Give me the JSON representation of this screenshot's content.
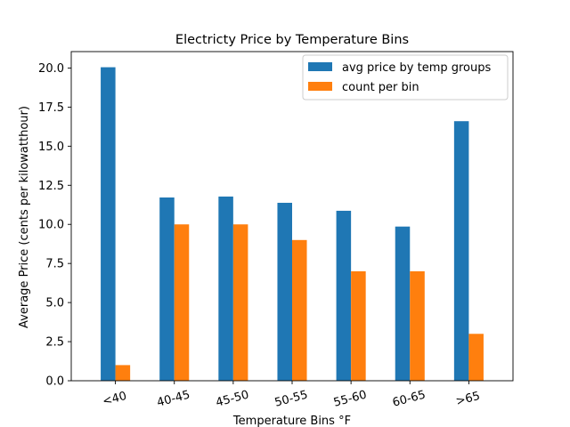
{
  "chart_data": {
    "type": "bar",
    "title": "Electricty Price by Temperature Bins",
    "xlabel": "Temperature Bins °F",
    "ylabel": "Average Price (cents per kilowatthour)",
    "categories": [
      "<40",
      "40-45",
      "45-50",
      "50-55",
      "55-60",
      "60-65",
      ">65"
    ],
    "series": [
      {
        "name": "avg price by temp groups",
        "color": "#1f77b4",
        "values": [
          20.05,
          11.72,
          11.78,
          11.38,
          10.87,
          9.86,
          16.6
        ]
      },
      {
        "name": "count per bin",
        "color": "#ff7f0e",
        "values": [
          1,
          10,
          10,
          9,
          7,
          7,
          3
        ]
      }
    ],
    "ylim": [
      0,
      21.05
    ],
    "yticks": [
      "0.0",
      "2.5",
      "5.0",
      "7.5",
      "10.0",
      "12.5",
      "15.0",
      "17.5",
      "20.0"
    ],
    "legend_position": "top-right",
    "grid": false
  }
}
